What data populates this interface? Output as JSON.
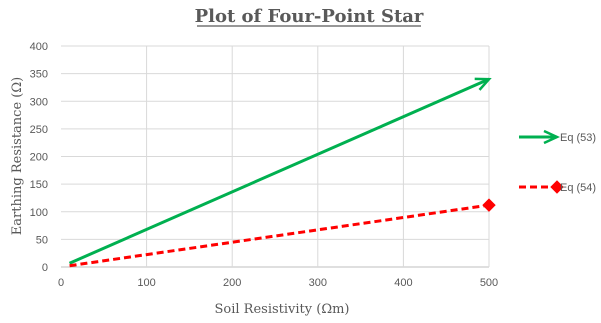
{
  "chart_data": {
    "type": "line",
    "title": "Plot of Four-Point Star",
    "xlabel": "Soil Resistivity (Ωm)",
    "ylabel": "Earthing Resistance (Ω)",
    "xlim": [
      0,
      500
    ],
    "ylim": [
      0,
      400
    ],
    "x_ticks": [
      0,
      100,
      200,
      300,
      400,
      500
    ],
    "y_ticks": [
      0,
      50,
      100,
      150,
      200,
      250,
      300,
      350,
      400
    ],
    "grid": true,
    "legend_position": "right",
    "series": [
      {
        "name": "Eq (53)",
        "color": "#00b050",
        "line_style": "solid",
        "end_marker": "arrow",
        "x": [
          10,
          500
        ],
        "y": [
          6.8,
          340
        ]
      },
      {
        "name": "Eq (54)",
        "color": "#ff0000",
        "line_style": "dashed",
        "end_marker": "diamond",
        "x": [
          10,
          500
        ],
        "y": [
          2.3,
          112
        ]
      }
    ]
  }
}
